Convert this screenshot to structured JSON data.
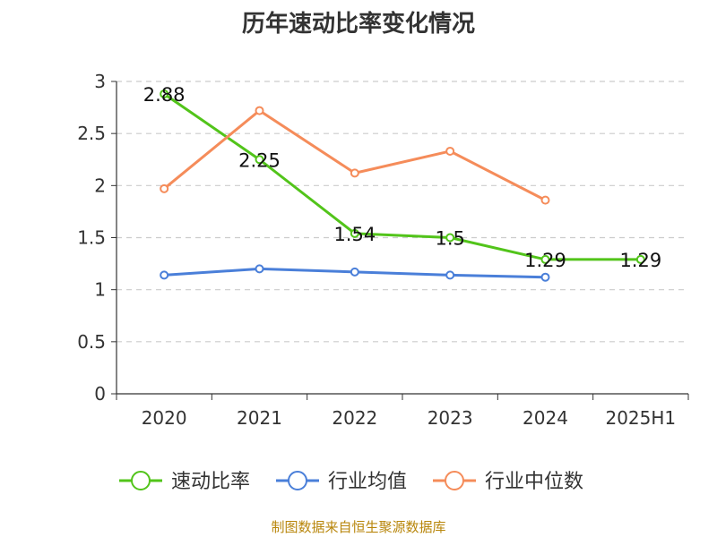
{
  "chart_data": {
    "type": "line",
    "title": "历年速动比率变化情况",
    "categories": [
      "2020",
      "2021",
      "2022",
      "2023",
      "2024",
      "2025H1"
    ],
    "ylim": [
      0,
      3
    ],
    "yticks": [
      "0",
      "0.5",
      "1",
      "1.5",
      "2",
      "2.5",
      "3"
    ],
    "grid": true,
    "legend_position": "bottom",
    "series": [
      {
        "name": "速动比率",
        "color": "#52c41a",
        "values": [
          2.88,
          2.25,
          1.54,
          1.5,
          1.29,
          1.29
        ],
        "labels": [
          "2.88",
          "2.25",
          "1.54",
          "1.5",
          "1.29",
          "1.29"
        ]
      },
      {
        "name": "行业均值",
        "color": "#4a7fd9",
        "values": [
          1.14,
          1.2,
          1.17,
          1.14,
          1.12,
          null
        ]
      },
      {
        "name": "行业中位数",
        "color": "#f58c5a",
        "values": [
          1.97,
          2.72,
          2.12,
          2.33,
          1.86,
          null
        ]
      }
    ]
  },
  "footer": "制图数据来自恒生聚源数据库"
}
